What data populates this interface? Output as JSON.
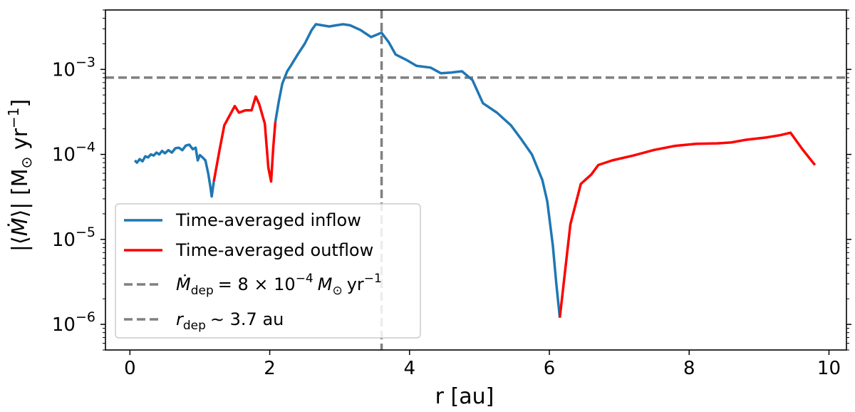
{
  "chart_data": {
    "type": "line",
    "xlabel": "r [au]",
    "ylabel": "|⟨Ṁ⟩| [M⊙ yr⁻¹]",
    "xlim": [
      -0.35,
      10.25
    ],
    "ylim": [
      5e-07,
      0.005
    ],
    "yscale": "log",
    "grid": false,
    "legend_position": "lower-left",
    "x_ticks": [
      0,
      2,
      4,
      6,
      8,
      10
    ],
    "x_tick_labels": [
      "0",
      "2",
      "4",
      "6",
      "8",
      "10"
    ],
    "y_ticks": [
      0.001,
      0.0001,
      1e-05,
      1e-06
    ],
    "y_tick_bases": [
      "10",
      "10",
      "10",
      "10"
    ],
    "y_tick_exponents": [
      "−3",
      "−4",
      "−5",
      "−6"
    ],
    "series": [
      {
        "name": "Time-averaged inflow",
        "color": "#1f77b4",
        "segments": [
          [
            [
              0.07,
              8.5e-05
            ],
            [
              0.1,
              8e-05
            ],
            [
              0.14,
              8.8e-05
            ],
            [
              0.18,
              8.3e-05
            ],
            [
              0.22,
              9.5e-05
            ],
            [
              0.26,
              9.2e-05
            ],
            [
              0.3,
              0.0001
            ],
            [
              0.34,
              9.7e-05
            ],
            [
              0.38,
              0.000105
            ],
            [
              0.42,
              0.0001
            ],
            [
              0.46,
              0.00011
            ],
            [
              0.5,
              0.000103
            ],
            [
              0.55,
              0.000112
            ],
            [
              0.6,
              0.000105
            ],
            [
              0.65,
              0.000118
            ],
            [
              0.7,
              0.00012
            ],
            [
              0.75,
              0.000112
            ],
            [
              0.8,
              0.000127
            ],
            [
              0.85,
              0.00013
            ],
            [
              0.9,
              0.000115
            ],
            [
              0.94,
              0.00012
            ],
            [
              0.97,
              8.5e-05
            ],
            [
              1.0,
              9.8e-05
            ],
            [
              1.04,
              9.2e-05
            ],
            [
              1.08,
              8.5e-05
            ],
            [
              1.12,
              6e-05
            ],
            [
              1.15,
              4.2e-05
            ],
            [
              1.17,
              3.2e-05
            ],
            [
              1.2,
              4.8e-05
            ]
          ],
          [
            [
              2.08,
              0.00024
            ],
            [
              2.13,
              0.00042
            ],
            [
              2.18,
              0.00068
            ],
            [
              2.25,
              0.00095
            ],
            [
              2.3,
              0.0011
            ],
            [
              2.4,
              0.0015
            ],
            [
              2.5,
              0.002
            ],
            [
              2.6,
              0.0029
            ],
            [
              2.66,
              0.0034
            ],
            [
              2.75,
              0.0033
            ],
            [
              2.85,
              0.0032
            ],
            [
              2.95,
              0.0033
            ],
            [
              3.05,
              0.0034
            ],
            [
              3.15,
              0.0033
            ],
            [
              3.3,
              0.0029
            ],
            [
              3.45,
              0.0024
            ],
            [
              3.6,
              0.0027
            ],
            [
              3.7,
              0.0021
            ],
            [
              3.8,
              0.0015
            ],
            [
              3.95,
              0.0013
            ],
            [
              4.1,
              0.0011
            ],
            [
              4.3,
              0.00105
            ],
            [
              4.45,
              0.0009
            ],
            [
              4.6,
              0.00092
            ],
            [
              4.75,
              0.00095
            ],
            [
              4.9,
              0.00075
            ],
            [
              5.05,
              0.0004
            ],
            [
              5.25,
              0.00031
            ],
            [
              5.45,
              0.00022
            ],
            [
              5.6,
              0.00015
            ],
            [
              5.75,
              0.0001
            ],
            [
              5.9,
              5e-05
            ],
            [
              5.97,
              2.8e-05
            ],
            [
              6.05,
              8.5e-06
            ],
            [
              6.1,
              3e-06
            ],
            [
              6.15,
              1.2e-06
            ]
          ]
        ]
      },
      {
        "name": "Time-averaged outflow",
        "color": "#ff0000",
        "segments": [
          [
            [
              1.2,
              4.8e-05
            ],
            [
              1.28,
              0.00011
            ],
            [
              1.35,
              0.00022
            ],
            [
              1.43,
              0.00029
            ],
            [
              1.5,
              0.00037
            ],
            [
              1.56,
              0.00031
            ],
            [
              1.65,
              0.00033
            ],
            [
              1.74,
              0.00033
            ],
            [
              1.8,
              0.00048
            ],
            [
              1.85,
              0.00039
            ],
            [
              1.93,
              0.00023
            ],
            [
              1.98,
              7e-05
            ],
            [
              2.02,
              4.8e-05
            ],
            [
              2.05,
              0.00012
            ],
            [
              2.08,
              0.00024
            ]
          ],
          [
            [
              6.15,
              1.2e-06
            ],
            [
              6.3,
              1.5e-05
            ],
            [
              6.45,
              4.5e-05
            ],
            [
              6.6,
              5.8e-05
            ],
            [
              6.7,
              7.5e-05
            ],
            [
              6.9,
              8.5e-05
            ],
            [
              7.2,
              9.7e-05
            ],
            [
              7.5,
              0.000113
            ],
            [
              7.8,
              0.000126
            ],
            [
              8.1,
              0.000133
            ],
            [
              8.4,
              0.000135
            ],
            [
              8.6,
              0.000138
            ],
            [
              8.8,
              0.000148
            ],
            [
              9.1,
              0.000158
            ],
            [
              9.3,
              0.000168
            ],
            [
              9.45,
              0.00018
            ],
            [
              9.62,
              0.000115
            ],
            [
              9.8,
              7.5e-05
            ]
          ]
        ]
      }
    ],
    "reference_lines": [
      {
        "orientation": "horizontal",
        "value": 0.0008,
        "color": "#808080",
        "style": "dashed",
        "legend_label": "Ṁdep = 8 × 10⁻⁴ M⊙ yr⁻¹"
      },
      {
        "orientation": "vertical",
        "value": 3.6,
        "color": "#808080",
        "style": "dashed",
        "legend_label": "rdep ∼ 3.7 au"
      }
    ]
  },
  "legend": {
    "inflow_label": "Time-averaged inflow",
    "outflow_label": "Time-averaged outflow",
    "mdot_symbol": "Ṁ",
    "mdot_sub": "dep",
    "mdot_value": "= 8 × 10",
    "mdot_exp": "−4",
    "mdot_units": "M",
    "mdot_sun": "⊙",
    "mdot_yr": "yr",
    "mdot_yr_exp": "−1",
    "r_symbol": "r",
    "r_sub": "dep",
    "r_value": "∼ 3.7 au"
  },
  "axis_text": {
    "x_label": "r [au]",
    "y_label_open": "|⟨",
    "y_label_mdot": "Ṁ",
    "y_label_close": "⟩| [M",
    "y_label_sun": "⊙",
    "y_label_yr": " yr",
    "y_label_exp": "−1",
    "y_label_end": "]"
  }
}
